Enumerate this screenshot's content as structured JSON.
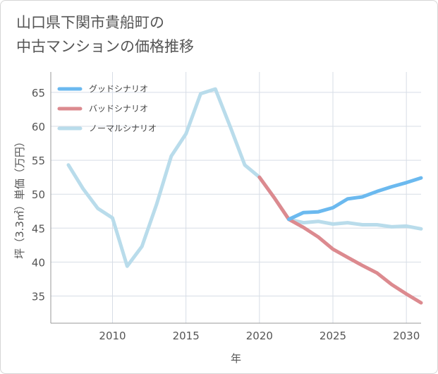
{
  "title_line1": "山口県下関市貴船町の",
  "title_line2": "中古マンションの価格推移",
  "colors": {
    "good": "#6bb9ef",
    "bad": "#dc8a8f",
    "normal": "#b9dceb",
    "grid": "#d7dde6",
    "axis": "#999999"
  },
  "chart_data": {
    "type": "line",
    "title": "山口県下関市貴船町の中古マンションの価格推移",
    "xlabel": "年",
    "ylabel": "坪（3.3㎡）単価（万円）",
    "xlim": [
      2005.8,
      2031
    ],
    "ylim": [
      31,
      68
    ],
    "xticks": [
      2010,
      2015,
      2020,
      2025,
      2030
    ],
    "yticks": [
      35,
      40,
      45,
      50,
      55,
      60,
      65
    ],
    "legend_position": "top-left",
    "series": [
      {
        "name": "グッドシナリオ",
        "color": "#6bb9ef",
        "x": [
          2022,
          2023,
          2024,
          2025,
          2026,
          2027,
          2028,
          2029,
          2030,
          2031
        ],
        "y": [
          46.3,
          47.3,
          47.4,
          48.0,
          49.3,
          49.6,
          50.4,
          51.1,
          51.7,
          52.4
        ]
      },
      {
        "name": "バッドシナリオ",
        "color": "#dc8a8f",
        "x": [
          2020,
          2021,
          2022,
          2023,
          2024,
          2025,
          2026,
          2027,
          2028,
          2029,
          2030,
          2031
        ],
        "y": [
          52.5,
          49.5,
          46.3,
          45.1,
          43.7,
          41.9,
          40.7,
          39.5,
          38.4,
          36.7,
          35.3,
          34.0
        ]
      },
      {
        "name": "ノーマルシナリオ",
        "color": "#b9dceb",
        "x": [
          2007,
          2008,
          2009,
          2010,
          2011,
          2012,
          2013,
          2014,
          2015,
          2016,
          2017,
          2018,
          2019,
          2020,
          2021,
          2022,
          2023,
          2024,
          2025,
          2026,
          2027,
          2028,
          2029,
          2030,
          2031
        ],
        "y": [
          54.3,
          50.8,
          47.9,
          46.5,
          39.4,
          42.3,
          48.5,
          55.6,
          58.9,
          64.8,
          65.5,
          60.0,
          54.3,
          52.5,
          49.5,
          46.3,
          45.8,
          46.0,
          45.6,
          45.8,
          45.5,
          45.5,
          45.2,
          45.3,
          44.9
        ]
      }
    ]
  }
}
